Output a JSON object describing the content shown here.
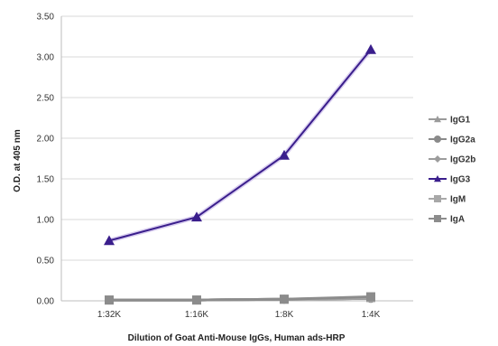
{
  "chart_data": {
    "type": "line",
    "title": "",
    "xlabel": "Dilution of Goat Anti-Mouse IgGs, Human ads-HRP",
    "ylabel": "O.D. at 405 nm",
    "categories": [
      "1:32K",
      "1:16K",
      "1:8K",
      "1:4K"
    ],
    "ylim": [
      0,
      3.5
    ],
    "yticks": [
      "0.00",
      "0.50",
      "1.00",
      "1.50",
      "2.00",
      "2.50",
      "3.00",
      "3.50"
    ],
    "grid": true,
    "legend": "right",
    "series": [
      {
        "name": "IgG1",
        "values": [
          0.01,
          0.01,
          0.02,
          0.03
        ],
        "color": "#9a9a9a",
        "marker": "triangle"
      },
      {
        "name": "IgG2a",
        "values": [
          0.01,
          0.01,
          0.02,
          0.03
        ],
        "color": "#8a8a8a",
        "marker": "circle"
      },
      {
        "name": "IgG2b",
        "values": [
          0.01,
          0.01,
          0.02,
          0.03
        ],
        "color": "#9c9c9c",
        "marker": "diamond"
      },
      {
        "name": "IgG3",
        "values": [
          0.74,
          1.03,
          1.79,
          3.09
        ],
        "color": "#3a1e8c",
        "marker": "triangle"
      },
      {
        "name": "IgM",
        "values": [
          0.01,
          0.01,
          0.02,
          0.04
        ],
        "color": "#a8a8a8",
        "marker": "square"
      },
      {
        "name": "IgA",
        "values": [
          0.01,
          0.01,
          0.02,
          0.05
        ],
        "color": "#8c8c8c",
        "marker": "square"
      }
    ]
  }
}
